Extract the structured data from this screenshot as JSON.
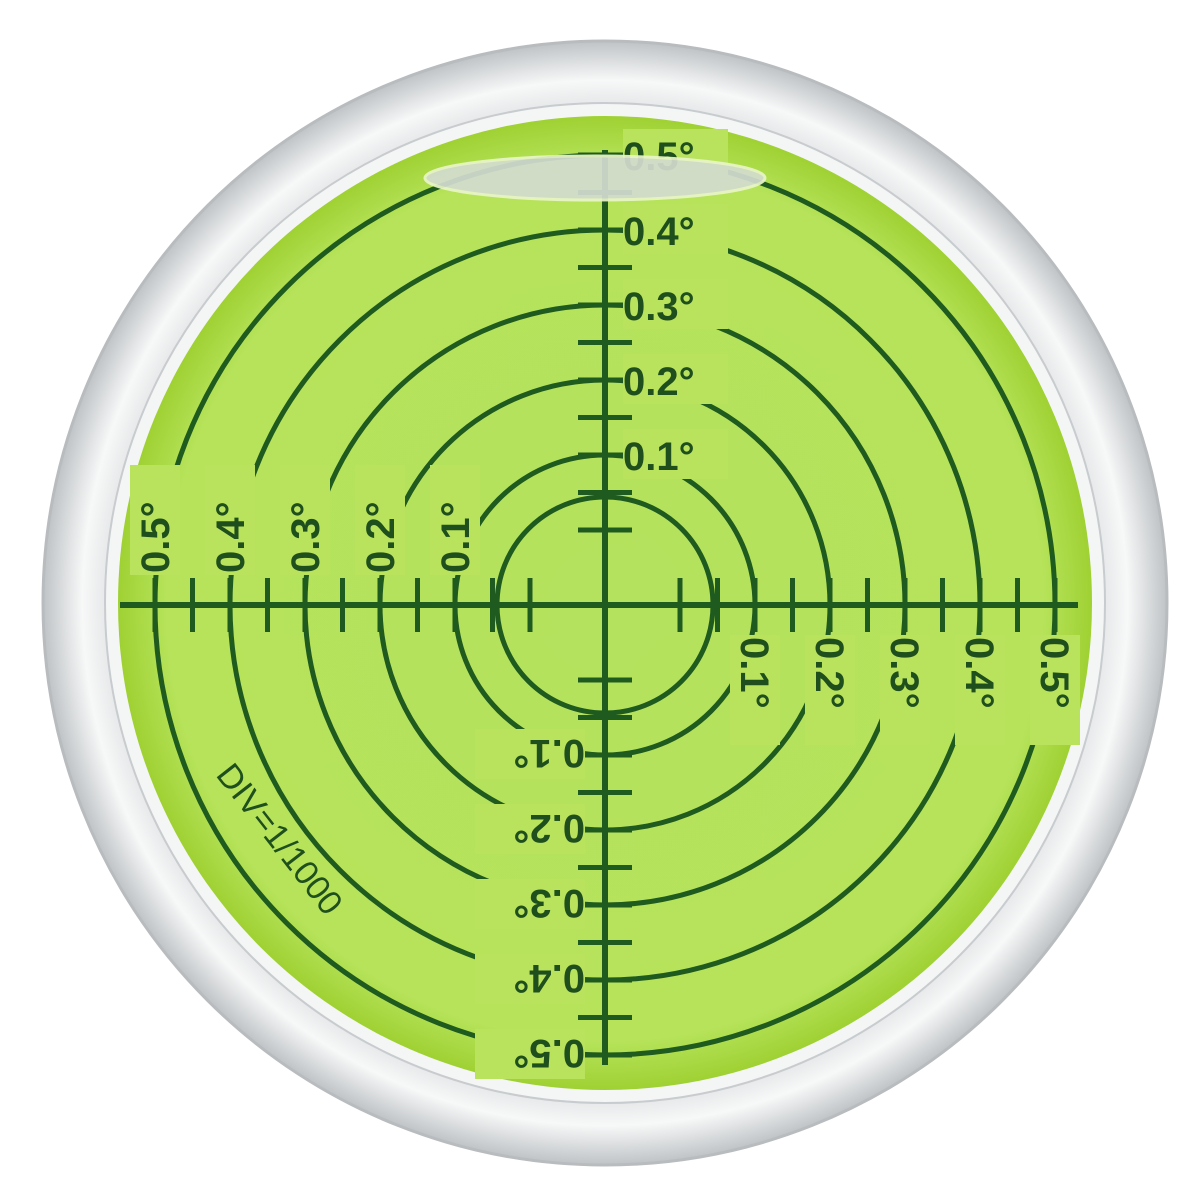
{
  "level": {
    "unit_labels": [
      "0.1°",
      "0.2°",
      "0.3°",
      "0.4°",
      "0.5°"
    ],
    "division_text": "DIV=1/1000",
    "colors": {
      "vial": "#b9e35c",
      "markings": "#1f5a1e",
      "housing": "#e6e8ea",
      "bubble": "#d4dcd0"
    }
  }
}
